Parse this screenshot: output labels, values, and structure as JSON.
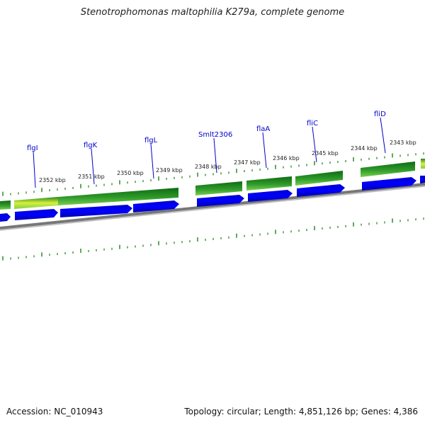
{
  "header": {
    "title": "Stenotrophomonas maltophilia K279a, complete genome"
  },
  "footer": {
    "accession": "Accession: NC_010943",
    "summary": "Topology: circular; Length: 4,851,126 bp; Genes: 4,386"
  },
  "scale": {
    "kbp_labels": [
      "2352 kbp",
      "2351 kbp",
      "2350 kbp",
      "2349 kbp",
      "2348 kbp",
      "2347 kbp",
      "2346 kbp",
      "2345 kbp",
      "2344 kbp",
      "2343 kbp"
    ]
  },
  "genes": [
    {
      "name": "flgI"
    },
    {
      "name": "flgK"
    },
    {
      "name": "flgL"
    },
    {
      "name": "Smlt2306"
    },
    {
      "name": "flaA"
    },
    {
      "name": "fliC"
    },
    {
      "name": "fliD"
    }
  ],
  "colors": {
    "cds_reverse": "#0000ee",
    "cds_dark": "#1f8a1f",
    "cds_light": "#6fd24a",
    "tick": "#2a8a2a",
    "backbone": "#808080",
    "label_line": "#0000cc"
  }
}
